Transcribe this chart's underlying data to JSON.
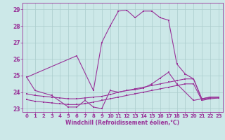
{
  "xlabel": "Windchill (Refroidissement éolien,°C)",
  "bg_color": "#cce8e8",
  "line_color": "#993399",
  "grid_color": "#aacccc",
  "xlim": [
    -0.5,
    23.5
  ],
  "ylim": [
    22.8,
    29.4
  ],
  "yticks": [
    23,
    24,
    25,
    26,
    27,
    28,
    29
  ],
  "xticks": [
    0,
    1,
    2,
    3,
    4,
    5,
    6,
    7,
    8,
    9,
    10,
    11,
    12,
    13,
    14,
    15,
    16,
    17,
    18,
    19,
    20,
    21,
    22,
    23
  ],
  "line1_x": [
    0,
    1,
    3,
    5,
    6,
    7,
    8,
    9,
    10,
    11,
    12,
    13,
    14,
    15,
    16,
    17,
    18,
    20,
    21,
    22,
    23
  ],
  "line1_y": [
    24.9,
    24.1,
    23.8,
    23.1,
    23.1,
    23.5,
    23.1,
    23.0,
    24.1,
    24.0,
    24.1,
    24.15,
    24.25,
    24.5,
    24.85,
    25.2,
    24.5,
    23.5,
    23.6,
    23.7,
    23.7
  ],
  "line2_x": [
    0,
    6,
    8,
    9,
    10,
    11,
    12,
    13,
    14,
    15,
    16,
    17,
    18,
    19,
    20,
    21,
    22,
    23
  ],
  "line2_y": [
    24.9,
    26.2,
    24.1,
    27.0,
    28.0,
    28.9,
    28.95,
    28.5,
    28.9,
    28.9,
    28.5,
    28.35,
    25.7,
    25.1,
    24.8,
    23.6,
    23.7,
    23.7
  ],
  "line3_x": [
    0,
    1,
    2,
    3,
    4,
    5,
    6,
    7,
    8,
    9,
    10,
    11,
    12,
    13,
    14,
    15,
    16,
    17,
    18,
    19,
    20,
    21,
    22,
    23
  ],
  "line3_y": [
    23.9,
    23.8,
    23.75,
    23.7,
    23.65,
    23.6,
    23.6,
    23.65,
    23.7,
    23.75,
    23.85,
    24.0,
    24.1,
    24.2,
    24.3,
    24.4,
    24.5,
    24.6,
    24.7,
    24.8,
    24.8,
    23.55,
    23.65,
    23.65
  ],
  "line4_x": [
    0,
    1,
    2,
    3,
    4,
    5,
    6,
    7,
    8,
    9,
    10,
    11,
    12,
    13,
    14,
    15,
    16,
    17,
    18,
    19,
    20,
    21,
    22,
    23
  ],
  "line4_y": [
    23.55,
    23.45,
    23.4,
    23.35,
    23.3,
    23.25,
    23.25,
    23.3,
    23.4,
    23.5,
    23.6,
    23.7,
    23.8,
    23.9,
    24.0,
    24.1,
    24.2,
    24.3,
    24.4,
    24.5,
    24.5,
    23.5,
    23.6,
    23.65
  ]
}
